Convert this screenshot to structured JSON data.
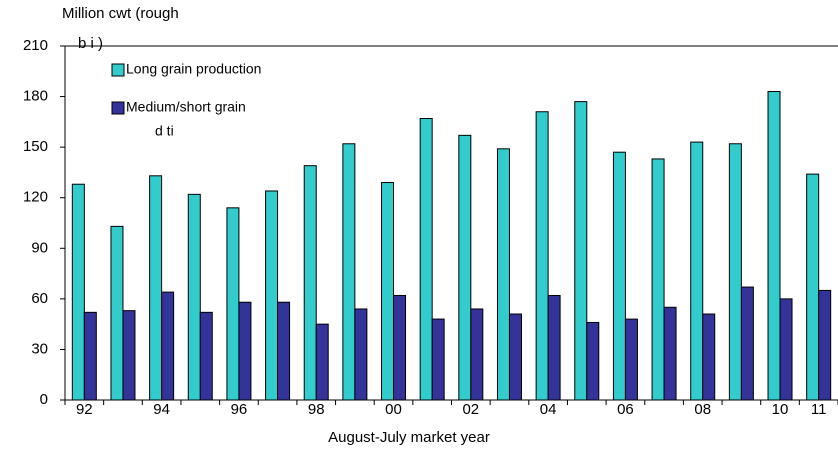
{
  "chart_data": {
    "type": "bar",
    "title": "Million cwt (rough",
    "title_line2": "b   i )",
    "legend_overflow": "d   ti",
    "x_label": "August-July market year",
    "categories": [
      "92",
      null,
      "94",
      null,
      "96",
      null,
      "98",
      null,
      "00",
      null,
      "02",
      null,
      "04",
      null,
      "06",
      null,
      "08",
      null,
      "10",
      "11"
    ],
    "series": [
      {
        "name": "Long grain production",
        "color": "#33cccc",
        "values": [
          128,
          103,
          133,
          122,
          114,
          124,
          139,
          152,
          129,
          167,
          157,
          149,
          171,
          177,
          147,
          143,
          153,
          152,
          183,
          134
        ]
      },
      {
        "name": "Medium/short grain",
        "color": "#333399",
        "values": [
          52,
          53,
          64,
          52,
          58,
          58,
          45,
          54,
          62,
          48,
          54,
          51,
          62,
          46,
          48,
          55,
          51,
          67,
          60,
          65
        ]
      }
    ],
    "ylim": [
      0,
      210
    ],
    "yticks": [
      0,
      30,
      60,
      90,
      120,
      150,
      180,
      210
    ]
  }
}
